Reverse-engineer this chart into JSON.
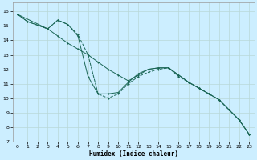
{
  "xlabel": "Humidex (Indice chaleur)",
  "bg_color": "#cceeff",
  "grid_color": "#b8d8d8",
  "line_color": "#1a6655",
  "xlim": [
    -0.5,
    23.5
  ],
  "ylim": [
    7,
    16.6
  ],
  "yticks": [
    7,
    8,
    9,
    10,
    11,
    12,
    13,
    14,
    15,
    16
  ],
  "xticks": [
    0,
    1,
    2,
    3,
    4,
    5,
    6,
    7,
    8,
    9,
    10,
    11,
    12,
    13,
    14,
    15,
    16,
    17,
    18,
    19,
    20,
    21,
    22,
    23
  ],
  "line1_x": [
    0,
    1,
    3,
    4,
    5,
    6,
    7,
    8,
    9,
    10,
    11,
    12,
    13,
    14,
    15,
    16,
    17,
    18,
    19,
    20,
    21,
    22,
    23
  ],
  "line1_y": [
    15.8,
    15.3,
    14.8,
    15.4,
    15.1,
    14.4,
    13.0,
    10.3,
    10.0,
    10.3,
    11.0,
    11.5,
    11.8,
    12.0,
    12.1,
    11.5,
    11.1,
    10.7,
    10.3,
    9.9,
    9.2,
    8.5,
    7.5
  ],
  "line2_x": [
    0,
    3,
    4,
    5,
    6,
    7,
    8,
    9,
    10,
    11,
    12,
    13,
    14,
    15,
    16,
    17,
    18,
    19,
    20,
    21,
    22,
    23
  ],
  "line2_y": [
    15.8,
    14.8,
    15.4,
    15.1,
    14.3,
    11.5,
    10.3,
    10.3,
    10.4,
    11.1,
    11.7,
    12.0,
    12.1,
    12.1,
    11.6,
    11.1,
    10.7,
    10.3,
    9.9,
    9.2,
    8.5,
    7.5
  ],
  "line3_x": [
    0,
    1,
    3,
    4,
    5,
    6,
    7,
    8,
    9,
    10,
    11,
    12,
    13,
    14,
    15,
    16,
    17,
    18,
    19,
    20,
    21,
    22,
    23
  ],
  "line3_y": [
    15.8,
    15.3,
    14.8,
    14.3,
    13.8,
    13.4,
    13.0,
    12.5,
    12.0,
    11.6,
    11.2,
    11.6,
    12.0,
    12.1,
    12.1,
    11.6,
    11.1,
    10.7,
    10.3,
    9.9,
    9.2,
    8.5,
    7.5
  ]
}
